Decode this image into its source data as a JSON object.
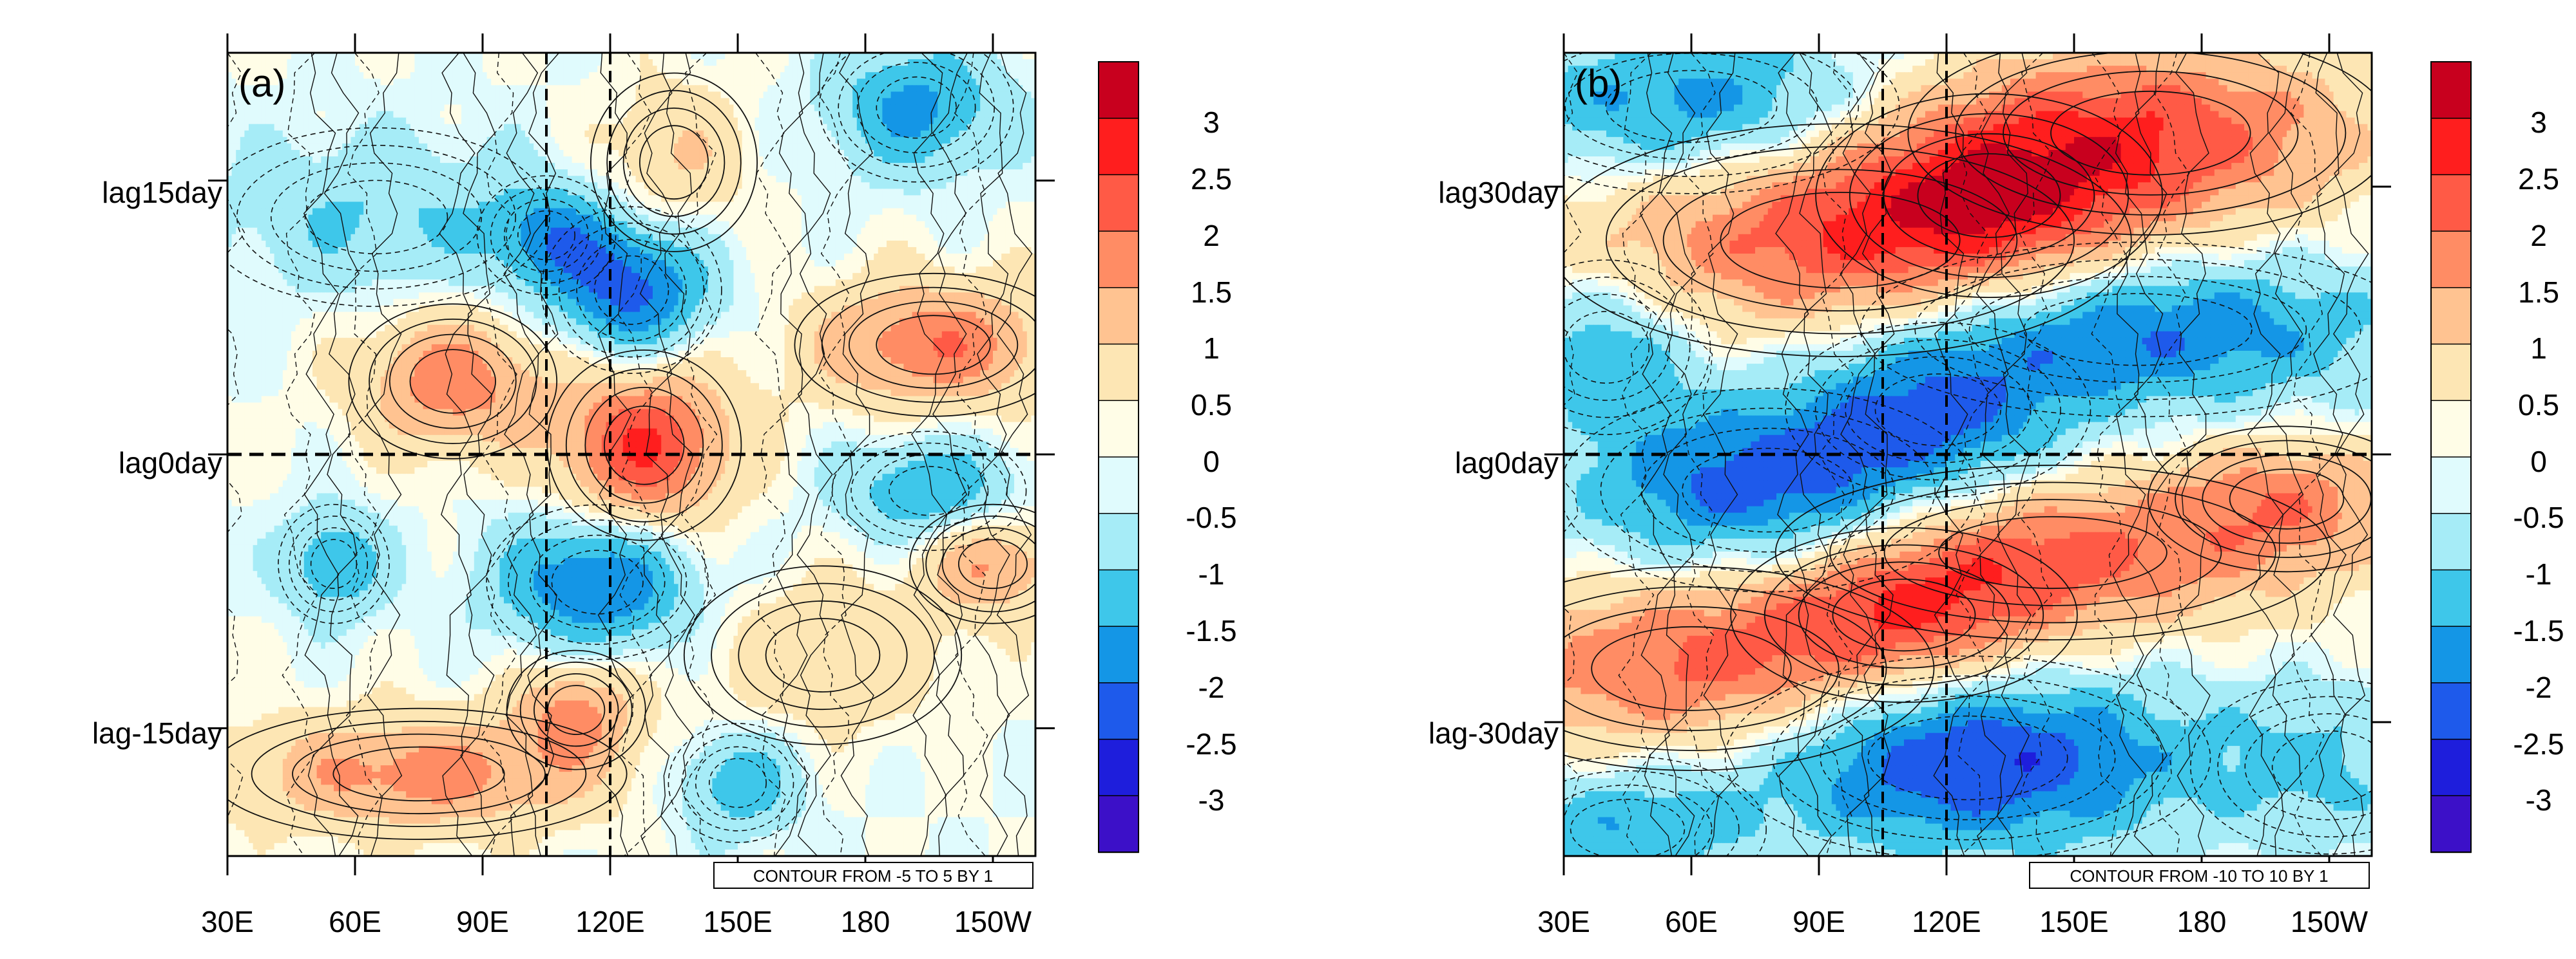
{
  "chart_data": [
    {
      "type": "heatmap",
      "panel_label": "(a)",
      "x_tick_labels": [
        "30E",
        "60E",
        "90E",
        "120E",
        "150E",
        "180",
        "150W"
      ],
      "x_tick_lon": [
        30,
        60,
        90,
        120,
        150,
        180,
        210
      ],
      "xlim": [
        30,
        220
      ],
      "y_tick_labels": [
        "lag15day",
        "lag0day",
        "lag-15day"
      ],
      "y_tick_values": [
        15,
        0,
        -15
      ],
      "ylim": [
        -22,
        22
      ],
      "vertical_dashed_lon": [
        105,
        120
      ],
      "horizontal_dashed_lag": 0,
      "contour_note": "CONTOUR FROM -5 TO 5 BY 1",
      "colorbar_labels": [
        "3",
        "2.5",
        "2",
        "1.5",
        "1",
        "0.5",
        "0",
        "-0.5",
        "-1",
        "-1.5",
        "-2",
        "-2.5",
        "-3"
      ],
      "features": [
        {
          "lon": 128,
          "lag": 0.5,
          "value": 2.3,
          "sx": 14,
          "sy": 3.2
        },
        {
          "lon": 83,
          "lag": 4,
          "value": 1.6,
          "sx": 15,
          "sy": 2.6
        },
        {
          "lon": 196,
          "lag": 6,
          "value": 1.7,
          "sx": 20,
          "sy": 2.4
        },
        {
          "lon": 125,
          "lag": 9,
          "value": -2.0,
          "sx": 13,
          "sy": 2.8
        },
        {
          "lon": 105,
          "lag": 12,
          "value": -1.2,
          "sx": 10,
          "sy": 2.0
        },
        {
          "lon": 117,
          "lag": -7,
          "value": -1.9,
          "sx": 16,
          "sy": 2.6
        },
        {
          "lon": 55,
          "lag": -6,
          "value": -1.3,
          "sx": 8,
          "sy": 2.0
        },
        {
          "lon": 192,
          "lag": 19,
          "value": -1.4,
          "sx": 14,
          "sy": 2.5
        },
        {
          "lon": 195,
          "lag": -2,
          "value": -1.3,
          "sx": 14,
          "sy": 2.0
        },
        {
          "lon": 75,
          "lag": -17.5,
          "value": 1.5,
          "sx": 30,
          "sy": 2.2
        },
        {
          "lon": 112,
          "lag": -14,
          "value": 1.3,
          "sx": 10,
          "sy": 2.0
        },
        {
          "lon": 210,
          "lag": -6,
          "value": 1.3,
          "sx": 12,
          "sy": 2.0
        },
        {
          "lon": 150,
          "lag": -18,
          "value": -1.2,
          "sx": 10,
          "sy": 2.0
        },
        {
          "lon": 135,
          "lag": 16,
          "value": 0.8,
          "sx": 12,
          "sy": 3.0
        },
        {
          "lon": 65,
          "lag": 13,
          "value": -0.8,
          "sx": 25,
          "sy": 3.0
        },
        {
          "lon": 170,
          "lag": -11,
          "value": 0.7,
          "sx": 20,
          "sy": 3.0
        }
      ]
    },
    {
      "type": "heatmap",
      "panel_label": "(b)",
      "x_tick_labels": [
        "30E",
        "60E",
        "90E",
        "120E",
        "150E",
        "180",
        "150W"
      ],
      "x_tick_lon": [
        30,
        60,
        90,
        120,
        150,
        180,
        210
      ],
      "xlim": [
        30,
        220
      ],
      "y_tick_labels": [
        "lag30day",
        "lag0day",
        "lag-30day"
      ],
      "y_tick_values": [
        30,
        0,
        -30
      ],
      "ylim": [
        -45,
        45
      ],
      "vertical_dashed_lon": [
        105,
        120
      ],
      "horizontal_dashed_lag": 0,
      "contour_note": "CONTOUR FROM -10 TO 10 BY 1",
      "colorbar_labels": [
        "3",
        "2.5",
        "2",
        "1.5",
        "1",
        "0.5",
        "0",
        "-0.5",
        "-1",
        "-1.5",
        "-2",
        "-2.5",
        "-3"
      ],
      "features": [
        {
          "lon": 95,
          "lag": 24,
          "value": 2.0,
          "sx": 42,
          "sy": 8
        },
        {
          "lon": 168,
          "lag": 36,
          "value": 2.0,
          "sx": 35,
          "sy": 7
        },
        {
          "lon": 130,
          "lag": 29,
          "value": 1.4,
          "sx": 25,
          "sy": 7
        },
        {
          "lon": 78,
          "lag": -4,
          "value": -2.2,
          "sx": 30,
          "sy": 7
        },
        {
          "lon": 165,
          "lag": 14,
          "value": -1.9,
          "sx": 40,
          "sy": 6
        },
        {
          "lon": 118,
          "lag": 5,
          "value": -1.5,
          "sx": 22,
          "sy": 6
        },
        {
          "lon": 60,
          "lag": -24,
          "value": 1.9,
          "sx": 35,
          "sy": 7
        },
        {
          "lon": 145,
          "lag": -11,
          "value": 1.8,
          "sx": 40,
          "sy": 6
        },
        {
          "lon": 110,
          "lag": -18,
          "value": 1.6,
          "sx": 25,
          "sy": 6
        },
        {
          "lon": 200,
          "lag": -5,
          "value": 1.3,
          "sx": 20,
          "sy": 5
        },
        {
          "lon": 125,
          "lag": -34,
          "value": -2.4,
          "sx": 35,
          "sy": 7
        },
        {
          "lon": 60,
          "lag": 39,
          "value": -1.6,
          "sx": 30,
          "sy": 6
        },
        {
          "lon": 40,
          "lag": 12,
          "value": -1.2,
          "sx": 15,
          "sy": 6
        },
        {
          "lon": 210,
          "lag": -35,
          "value": -0.8,
          "sx": 20,
          "sy": 6
        },
        {
          "lon": 45,
          "lag": -42,
          "value": -1.2,
          "sx": 20,
          "sy": 5
        }
      ]
    }
  ]
}
